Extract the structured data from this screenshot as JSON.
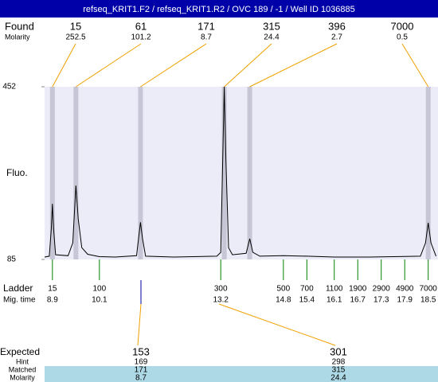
{
  "header": {
    "title": "refseq_KRIT1.F2 / refseq_KRIT1.R2 / OVC 189 / -1 / Well ID 1036885"
  },
  "chart_data": {
    "type": "line",
    "y_label": "Fluo.",
    "ylim": [
      85,
      452
    ],
    "yticks": [
      85,
      452
    ],
    "xlim": [
      8.7,
      18.75
    ],
    "color": "#000000",
    "x": [
      8.7,
      8.82,
      8.87,
      8.9,
      8.93,
      8.98,
      9.3,
      9.42,
      9.5,
      9.56,
      9.65,
      9.8,
      10.1,
      10.5,
      11.05,
      11.1,
      11.15,
      11.2,
      11.28,
      12.0,
      13.1,
      13.2,
      13.25,
      13.29,
      13.33,
      13.4,
      13.5,
      13.85,
      13.94,
      14.02,
      14.2,
      14.8,
      15.4,
      16.1,
      17.0,
      18.3,
      18.43,
      18.5,
      18.57,
      18.7
    ],
    "values": [
      90,
      92,
      150,
      203,
      150,
      95,
      93,
      120,
      242,
      170,
      110,
      96,
      91,
      90,
      93,
      130,
      164,
      130,
      92,
      90,
      92,
      100,
      300,
      452,
      300,
      110,
      95,
      98,
      129,
      100,
      92,
      93,
      92,
      90,
      90,
      92,
      120,
      163,
      120,
      92
    ],
    "found": {
      "label": "Found",
      "molarity_label": "Molarity",
      "sizes": [
        15,
        61,
        171,
        315,
        396,
        7000
      ],
      "molarities": [
        252.5,
        101.2,
        8.7,
        24.4,
        2.7,
        0.5
      ],
      "mig_times": [
        8.9,
        9.5,
        11.15,
        13.29,
        13.94,
        18.5
      ]
    },
    "ladder": {
      "label": "Ladder",
      "mig_time_label": "Mig. time",
      "sizes": [
        15,
        100,
        300,
        500,
        700,
        1100,
        1900,
        2900,
        4900,
        7000
      ],
      "mig_times": [
        8.9,
        10.1,
        13.2,
        14.8,
        15.4,
        16.1,
        16.7,
        17.3,
        17.9,
        18.5
      ]
    },
    "expected": {
      "label": "Expected",
      "sizes": [
        153,
        301
      ],
      "hint_label": "Hint",
      "hints": [
        169,
        298
      ],
      "matched_label": "Matched",
      "matched": [
        171,
        315
      ],
      "molarity_label": "Molarity",
      "molarities": [
        8.7,
        24.4
      ]
    }
  }
}
